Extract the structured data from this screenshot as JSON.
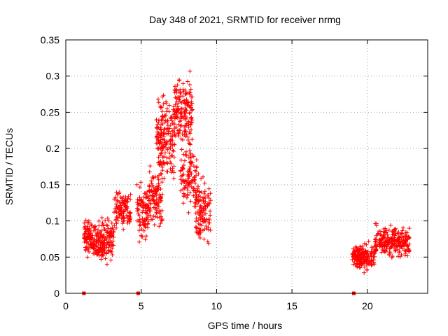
{
  "chart_data": {
    "type": "scatter",
    "title": "Day 348 of 2021, SRMTID for receiver nrmg",
    "xlabel": "GPS time / hours",
    "ylabel": "SRMTID / TECUs",
    "xlim": [
      0,
      24
    ],
    "ylim": [
      0,
      0.35
    ],
    "xticks": [
      0,
      5,
      10,
      15,
      20
    ],
    "xtick_labels": [
      "0",
      "5",
      "10",
      "15",
      "20"
    ],
    "yticks": [
      0,
      0.05,
      0.1,
      0.15,
      0.2,
      0.25,
      0.3,
      0.35
    ],
    "ytick_labels": [
      "0",
      "0.05",
      "0.1",
      "0.15",
      "0.2",
      "0.25",
      "0.3",
      "0.35"
    ],
    "grid": true,
    "marker": "+",
    "color": "#ff0000",
    "zero_markers_x": [
      1.2,
      4.8,
      19.1
    ],
    "clusters": [
      {
        "x0": 1.2,
        "x1": 2.0,
        "base": 0.075,
        "spread": 0.035,
        "n": 110
      },
      {
        "x0": 2.0,
        "x1": 3.2,
        "base": 0.075,
        "spread": 0.04,
        "n": 150
      },
      {
        "x0": 3.2,
        "x1": 4.3,
        "base": 0.115,
        "spread": 0.035,
        "n": 110
      },
      {
        "x0": 4.7,
        "x1": 5.5,
        "base": 0.11,
        "spread": 0.05,
        "n": 90
      },
      {
        "x0": 5.5,
        "x1": 6.4,
        "base": 0.13,
        "spread": 0.06,
        "n": 110
      },
      {
        "x0": 6.0,
        "x1": 7.2,
        "base": 0.215,
        "spread": 0.08,
        "n": 180
      },
      {
        "x0": 7.2,
        "x1": 8.4,
        "base": 0.25,
        "spread": 0.07,
        "n": 170
      },
      {
        "x0": 7.6,
        "x1": 8.8,
        "base": 0.16,
        "spread": 0.06,
        "n": 110
      },
      {
        "x0": 8.6,
        "x1": 9.6,
        "base": 0.11,
        "spread": 0.06,
        "n": 120
      },
      {
        "x0": 19.0,
        "x1": 20.5,
        "base": 0.05,
        "spread": 0.025,
        "n": 170
      },
      {
        "x0": 20.5,
        "x1": 22.8,
        "base": 0.072,
        "spread": 0.028,
        "n": 240
      }
    ]
  }
}
